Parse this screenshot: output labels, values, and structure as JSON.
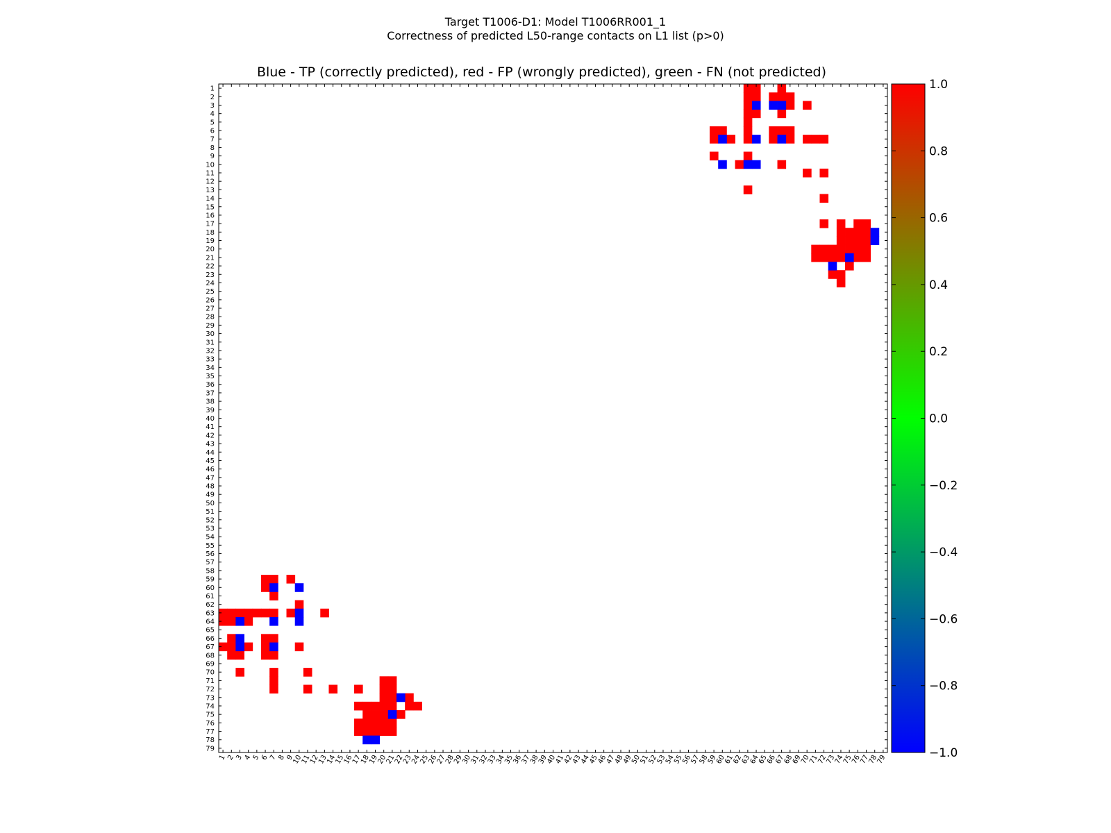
{
  "chart_data": {
    "type": "heatmap",
    "suptitle": "Target T1006-D1: Model T1006RR001_1",
    "subtitle": "Correctness of predicted L50-range contacts on L1 list (p>0)",
    "title": "Blue - TP (correctly predicted), red - FP (wrongly predicted), green - FN (not predicted)",
    "xlabel": "",
    "ylabel": "",
    "residue_range": [
      1,
      79
    ],
    "x_ticks": [
      "1",
      "2",
      "3",
      "4",
      "5",
      "6",
      "7",
      "8",
      "9",
      "10",
      "11",
      "12",
      "13",
      "14",
      "15",
      "16",
      "17",
      "18",
      "19",
      "20",
      "21",
      "22",
      "23",
      "24",
      "25",
      "26",
      "27",
      "28",
      "29",
      "30",
      "31",
      "32",
      "33",
      "34",
      "35",
      "36",
      "37",
      "38",
      "39",
      "40",
      "41",
      "42",
      "43",
      "44",
      "45",
      "46",
      "47",
      "48",
      "49",
      "50",
      "51",
      "52",
      "53",
      "54",
      "55",
      "56",
      "57",
      "58",
      "59",
      "60",
      "61",
      "62",
      "63",
      "64",
      "65",
      "66",
      "67",
      "68",
      "69",
      "70",
      "71",
      "72",
      "73",
      "74",
      "75",
      "76",
      "77",
      "78",
      "79"
    ],
    "y_ticks": [
      "1",
      "2",
      "3",
      "4",
      "5",
      "6",
      "7",
      "8",
      "9",
      "10",
      "11",
      "12",
      "13",
      "14",
      "15",
      "16",
      "17",
      "18",
      "19",
      "20",
      "21",
      "22",
      "23",
      "24",
      "25",
      "26",
      "27",
      "28",
      "29",
      "30",
      "31",
      "32",
      "33",
      "34",
      "35",
      "36",
      "37",
      "38",
      "39",
      "40",
      "41",
      "42",
      "43",
      "44",
      "45",
      "46",
      "47",
      "48",
      "49",
      "50",
      "51",
      "52",
      "53",
      "54",
      "55",
      "56",
      "57",
      "58",
      "59",
      "60",
      "61",
      "62",
      "63",
      "64",
      "65",
      "66",
      "67",
      "68",
      "69",
      "70",
      "71",
      "72",
      "73",
      "74",
      "75",
      "76",
      "77",
      "78",
      "79"
    ],
    "legend": {
      "TP": "blue",
      "FP": "red",
      "FN": "green"
    },
    "colorbar": {
      "range": [
        -1.0,
        1.0
      ],
      "ticks": [
        "1.0",
        "0.8",
        "0.6",
        "0.4",
        "0.2",
        "0.0",
        "−0.2",
        "−0.4",
        "−0.6",
        "−0.8",
        "−1.0"
      ],
      "stops": [
        "#ff0000",
        "#00ff00",
        "#0000ff"
      ]
    },
    "cells": {
      "description": "upper-right block lists [row, column] residue pairs; the matrix is drawn symmetrically",
      "TP": [
        [
          3,
          64
        ],
        [
          3,
          66
        ],
        [
          3,
          67
        ],
        [
          7,
          60
        ],
        [
          7,
          64
        ],
        [
          7,
          67
        ],
        [
          10,
          60
        ],
        [
          10,
          63
        ],
        [
          10,
          64
        ],
        [
          18,
          78
        ],
        [
          19,
          78
        ],
        [
          21,
          75
        ],
        [
          22,
          73
        ]
      ],
      "FP": [
        [
          1,
          63
        ],
        [
          1,
          64
        ],
        [
          1,
          67
        ],
        [
          2,
          63
        ],
        [
          2,
          64
        ],
        [
          2,
          66
        ],
        [
          2,
          67
        ],
        [
          2,
          68
        ],
        [
          3,
          63
        ],
        [
          3,
          68
        ],
        [
          3,
          70
        ],
        [
          4,
          63
        ],
        [
          4,
          64
        ],
        [
          4,
          67
        ],
        [
          5,
          63
        ],
        [
          6,
          59
        ],
        [
          6,
          60
        ],
        [
          6,
          63
        ],
        [
          6,
          66
        ],
        [
          6,
          67
        ],
        [
          6,
          68
        ],
        [
          7,
          59
        ],
        [
          7,
          61
        ],
        [
          7,
          63
        ],
        [
          7,
          66
        ],
        [
          7,
          68
        ],
        [
          7,
          70
        ],
        [
          7,
          71
        ],
        [
          7,
          72
        ],
        [
          9,
          59
        ],
        [
          9,
          63
        ],
        [
          10,
          62
        ],
        [
          10,
          67
        ],
        [
          11,
          70
        ],
        [
          11,
          72
        ],
        [
          13,
          63
        ],
        [
          14,
          72
        ],
        [
          17,
          72
        ],
        [
          17,
          74
        ],
        [
          17,
          76
        ],
        [
          17,
          77
        ],
        [
          18,
          74
        ],
        [
          18,
          75
        ],
        [
          18,
          76
        ],
        [
          18,
          77
        ],
        [
          19,
          74
        ],
        [
          19,
          75
        ],
        [
          19,
          76
        ],
        [
          19,
          77
        ],
        [
          20,
          71
        ],
        [
          20,
          72
        ],
        [
          20,
          73
        ],
        [
          20,
          74
        ],
        [
          20,
          75
        ],
        [
          20,
          76
        ],
        [
          20,
          77
        ],
        [
          21,
          71
        ],
        [
          21,
          72
        ],
        [
          21,
          73
        ],
        [
          21,
          74
        ],
        [
          21,
          76
        ],
        [
          21,
          77
        ],
        [
          22,
          75
        ],
        [
          23,
          73
        ],
        [
          23,
          74
        ],
        [
          24,
          74
        ]
      ]
    }
  }
}
